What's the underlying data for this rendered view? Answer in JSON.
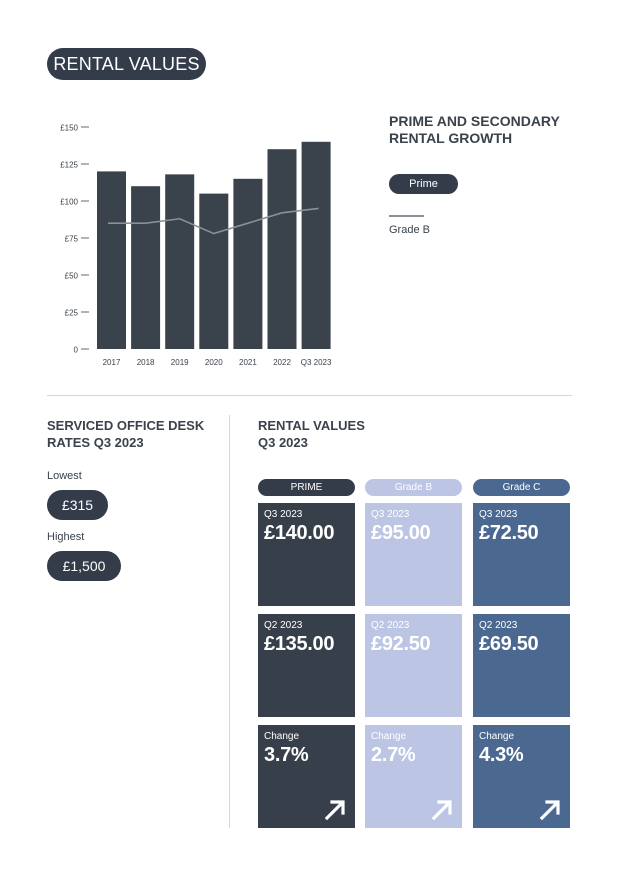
{
  "header": {
    "title": "RENTAL VALUES"
  },
  "chart_data": {
    "type": "bar",
    "categories": [
      "2017",
      "2018",
      "2019",
      "2020",
      "2021",
      "2022",
      "Q3 2023"
    ],
    "series": [
      {
        "name": "Prime",
        "type": "bar",
        "values": [
          120,
          110,
          118,
          105,
          115,
          135,
          140
        ]
      },
      {
        "name": "Grade B",
        "type": "line",
        "values": [
          85,
          85,
          88,
          78,
          85,
          92,
          95
        ]
      }
    ],
    "ylim": [
      0,
      150
    ],
    "yticks": [
      0,
      25,
      50,
      75,
      100,
      125,
      150
    ],
    "ytick_labels": [
      "0",
      "£25",
      "£50",
      "£75",
      "£100",
      "£125",
      "£150"
    ],
    "grid": false,
    "legend_placement": "right",
    "colors": {
      "bar": "#3a424b",
      "line": "#8a9098"
    }
  },
  "legend": {
    "title_line1": "PRIME AND SECONDARY",
    "title_line2": "RENTAL GROWTH",
    "prime_label": "Prime",
    "gradeb_label": "Grade B"
  },
  "desk_rates": {
    "title_line1": "SERVICED OFFICE DESK",
    "title_line2": "RATES Q3 2023",
    "lowest_label": "Lowest",
    "lowest_value": "£315",
    "highest_label": "Highest",
    "highest_value": "£1,500"
  },
  "rental_values": {
    "title_line1": "RENTAL VALUES",
    "title_line2": "Q3 2023",
    "columns": [
      {
        "header": "PRIME",
        "color": "#373f4a",
        "header_color": "#343c4a",
        "tiles": [
          {
            "label": "Q3 2023",
            "value": "£140.00"
          },
          {
            "label": "Q2 2023",
            "value": "£135.00"
          },
          {
            "label": "Change",
            "value": "3.7%",
            "icon": "arrow-up-right-icon"
          }
        ]
      },
      {
        "header": "Grade B",
        "color": "#bcc5e4",
        "header_color": "#bcc5e4",
        "tiles": [
          {
            "label": "Q3 2023",
            "value": "£95.00"
          },
          {
            "label": "Q2 2023",
            "value": "£92.50"
          },
          {
            "label": "Change",
            "value": "2.7%",
            "icon": "arrow-up-right-icon"
          }
        ]
      },
      {
        "header": "Grade C",
        "color": "#4b6990",
        "header_color": "#4b6990",
        "tiles": [
          {
            "label": "Q3 2023",
            "value": "£72.50"
          },
          {
            "label": "Q2 2023",
            "value": "£69.50"
          },
          {
            "label": "Change",
            "value": "4.3%",
            "icon": "arrow-up-right-icon"
          }
        ]
      }
    ]
  }
}
